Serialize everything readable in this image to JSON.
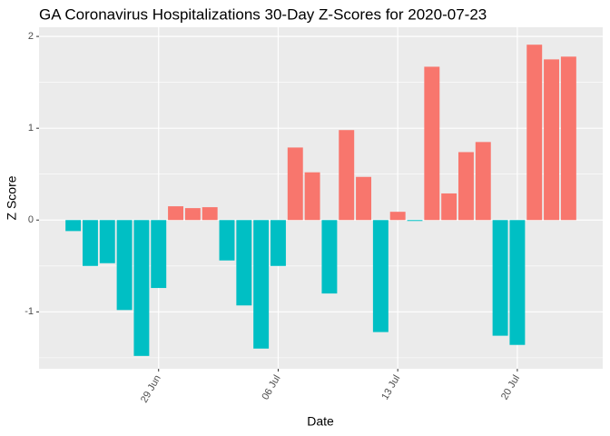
{
  "chart_data": {
    "type": "bar",
    "title": "GA Coronavirus Hospitalizations 30-Day Z-Scores for 2020-07-23",
    "x_label": "Date",
    "y_label": "Z Score",
    "x": [
      "2020-06-24",
      "2020-06-25",
      "2020-06-26",
      "2020-06-27",
      "2020-06-28",
      "2020-06-29",
      "2020-06-30",
      "2020-07-01",
      "2020-07-02",
      "2020-07-03",
      "2020-07-04",
      "2020-07-05",
      "2020-07-06",
      "2020-07-07",
      "2020-07-08",
      "2020-07-09",
      "2020-07-10",
      "2020-07-11",
      "2020-07-12",
      "2020-07-13",
      "2020-07-14",
      "2020-07-15",
      "2020-07-16",
      "2020-07-17",
      "2020-07-18",
      "2020-07-19",
      "2020-07-20",
      "2020-07-21",
      "2020-07-22",
      "2020-07-23"
    ],
    "values": [
      -0.12,
      -0.5,
      -0.47,
      -0.98,
      -1.48,
      -0.74,
      0.15,
      0.13,
      0.14,
      -0.44,
      -0.93,
      -1.4,
      -0.5,
      0.79,
      0.52,
      -0.8,
      0.98,
      0.47,
      -1.22,
      0.09,
      -0.01,
      1.67,
      0.29,
      0.74,
      0.85,
      -1.26,
      -1.36,
      1.91,
      1.75,
      1.78
    ],
    "positive_color": "#F8766D",
    "negative_color": "#00BFC4",
    "xlim": [
      "2020-06-22",
      "2020-07-25"
    ],
    "xticks": [
      {
        "value": "2020-06-29",
        "label": "29 Jun"
      },
      {
        "value": "2020-07-06",
        "label": "06 Jul"
      },
      {
        "value": "2020-07-13",
        "label": "13 Jul"
      },
      {
        "value": "2020-07-20",
        "label": "20 Jul"
      }
    ],
    "ylim": [
      -1.62,
      2.1
    ],
    "yticks": [
      -1,
      0,
      1,
      2
    ],
    "yticks_minor": [
      -1.5,
      -0.5,
      0.5,
      1.5
    ],
    "grid": true
  }
}
